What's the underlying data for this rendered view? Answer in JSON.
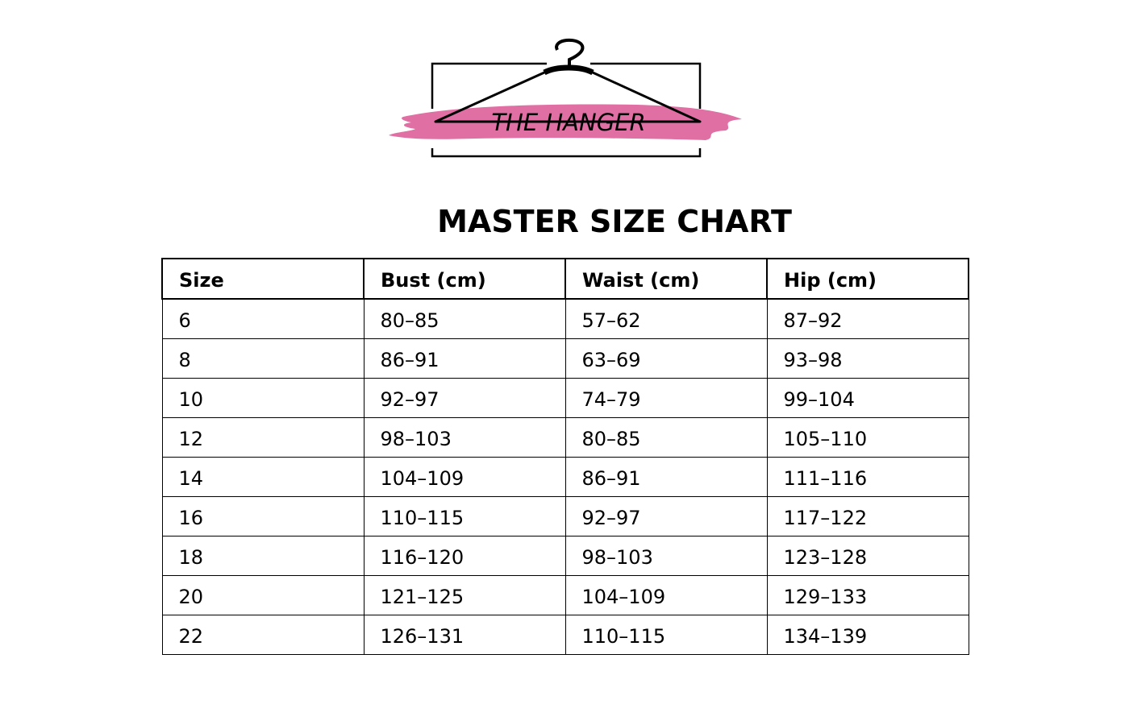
{
  "logo": {
    "text": "THE HANGER",
    "brush_color": "#e06fa3"
  },
  "title": "MASTER SIZE CHART",
  "table": {
    "headers": [
      "Size",
      "Bust (cm)",
      "Waist (cm)",
      "Hip (cm)"
    ],
    "rows": [
      [
        "6",
        "80–85",
        "57–62",
        "87–92"
      ],
      [
        "8",
        "86–91",
        "63–69",
        "93–98"
      ],
      [
        "10",
        "92–97",
        "74–79",
        "99–104"
      ],
      [
        "12",
        "98–103",
        "80–85",
        "105–110"
      ],
      [
        "14",
        "104–109",
        "86–91",
        "111–116"
      ],
      [
        "16",
        "110–115",
        "92–97",
        "117–122"
      ],
      [
        "18",
        "116–120",
        "98–103",
        "123–128"
      ],
      [
        "20",
        "121–125",
        "104–109",
        "129–133"
      ],
      [
        "22",
        "126–131",
        "110–115",
        "134–139"
      ]
    ]
  }
}
